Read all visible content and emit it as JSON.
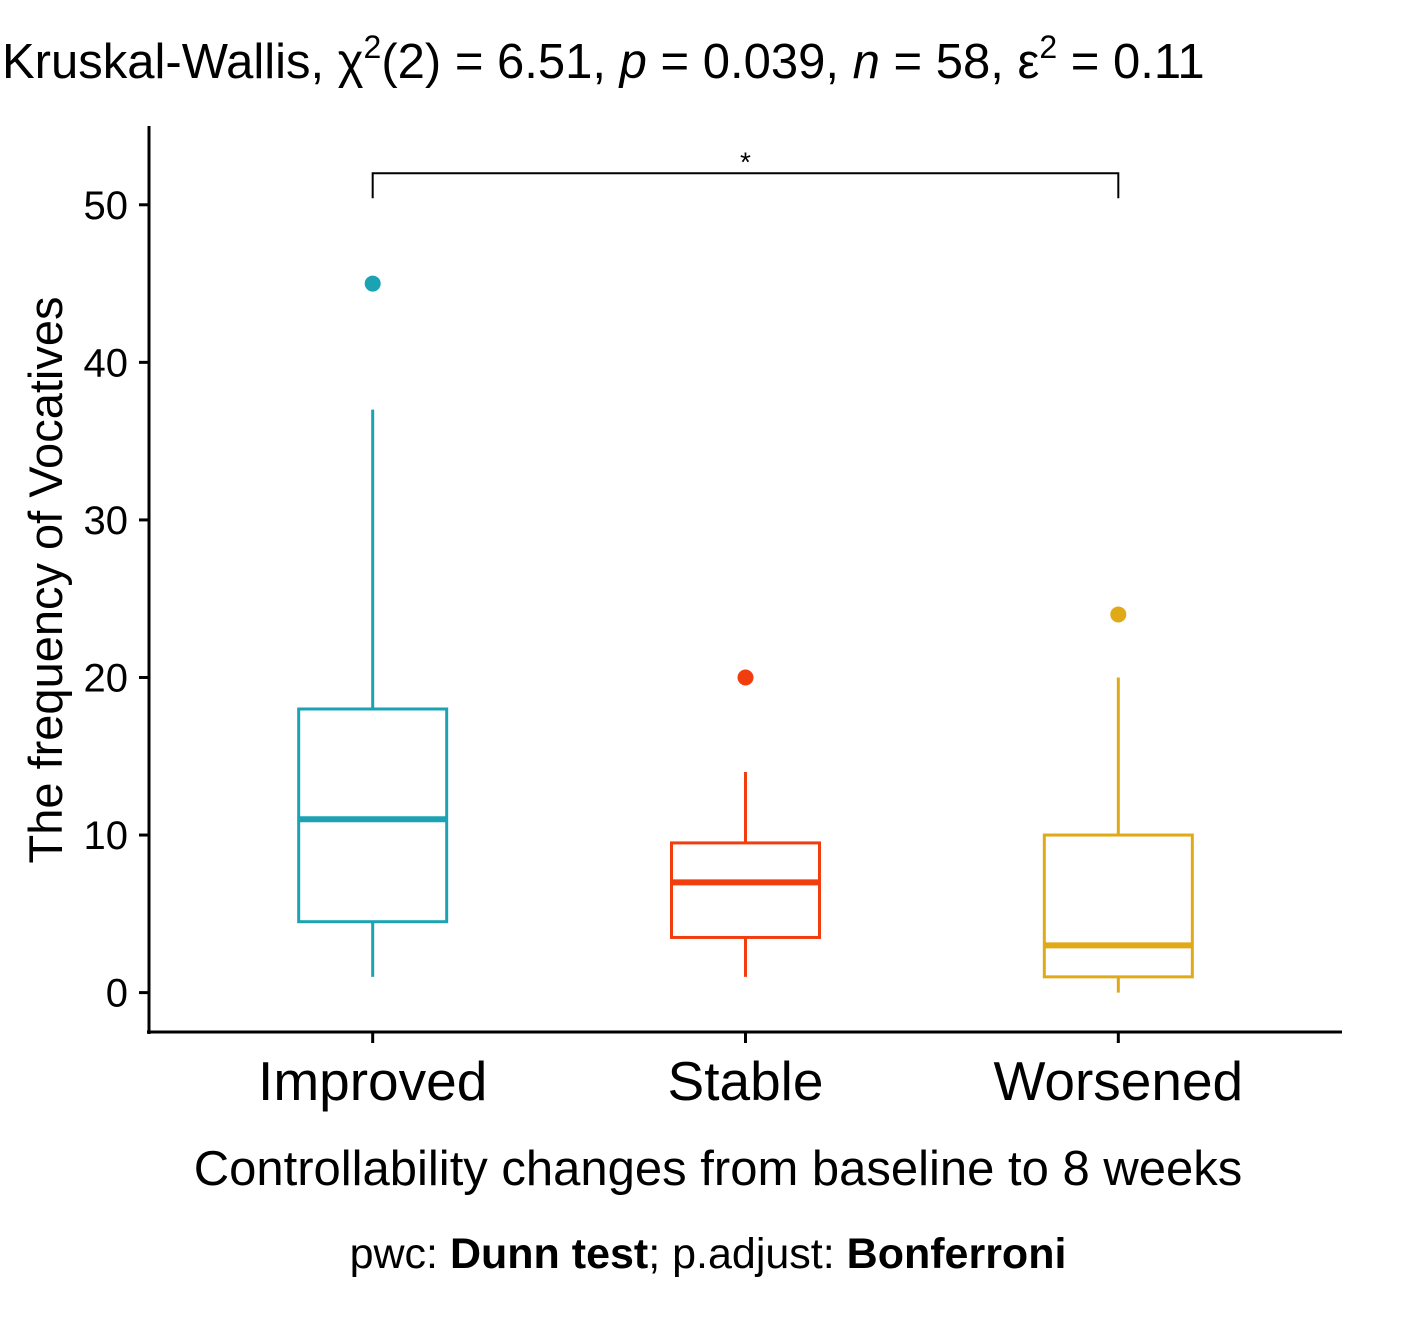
{
  "chart_data": {
    "type": "boxplot",
    "title": {
      "test": "Kruskal-Wallis, ",
      "stat_symbol": "χ",
      "stat_sup": "2",
      "stat_df": "(2) = 6.51, ",
      "p_symbol": "p",
      "p_value": " = 0.039, ",
      "n_symbol": "n",
      "n_value": " = 58, ",
      "effect_symbol": "ε",
      "effect_sup": "2",
      "effect_value": " = 0.11"
    },
    "xlabel": "Controllability changes from baseline to 8 weeks",
    "ylabel": "The frequency of Vocatives",
    "ylim": [
      -2.5,
      55
    ],
    "yticks": [
      "0",
      "10",
      "20",
      "30",
      "40",
      "50"
    ],
    "categories": [
      "Improved",
      "Stable",
      "Worsened"
    ],
    "boxes": [
      {
        "category": "Improved",
        "color": "#1ba3b4",
        "whisker_low": 1,
        "q1": 4.5,
        "median": 11,
        "q3": 18,
        "whisker_high": 37,
        "outliers": [
          45
        ]
      },
      {
        "category": "Stable",
        "color": "#f23d0e",
        "whisker_low": 1,
        "q1": 3.5,
        "median": 7,
        "q3": 9.5,
        "whisker_high": 14,
        "outliers": [
          20
        ]
      },
      {
        "category": "Worsened",
        "color": "#e0a917",
        "whisker_low": 0,
        "q1": 1,
        "median": 3,
        "q3": 10,
        "whisker_high": 20,
        "outliers": [
          24
        ]
      }
    ],
    "comparisons": [
      {
        "group1": "Improved",
        "group2": "Worsened",
        "label": "*",
        "y": 52
      }
    ],
    "caption": {
      "pwc_label": "pwc: ",
      "pwc_method": "Dunn test",
      "sep": "; ",
      "adjust_label": "p.adjust: ",
      "adjust_method": "Bonferroni"
    }
  }
}
